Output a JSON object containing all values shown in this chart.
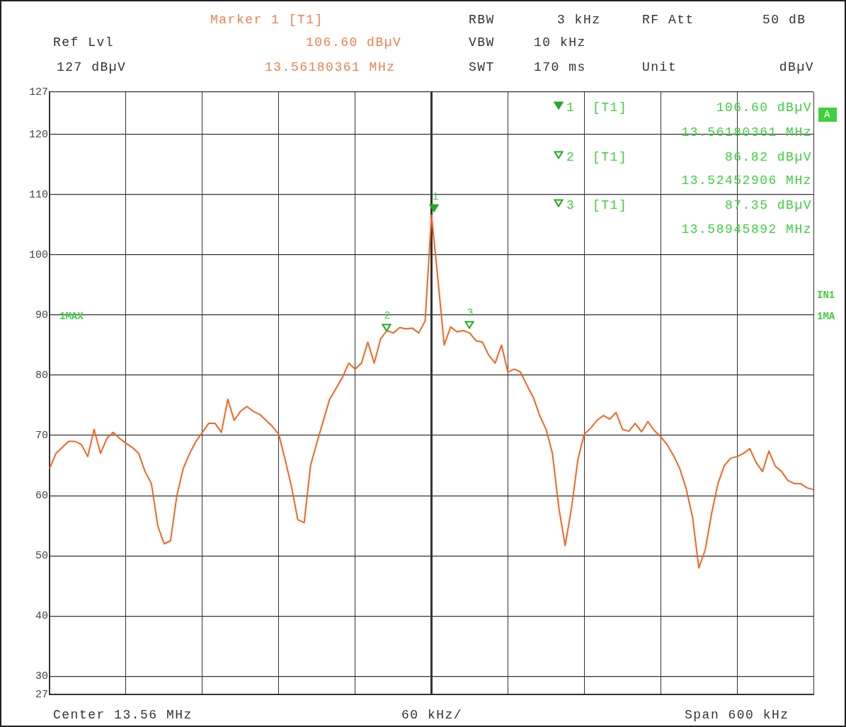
{
  "chart_data": {
    "type": "line",
    "annotations": [
      "Marker 1 [T1]",
      "RBW",
      "3 kHz",
      "RF Att",
      "50 dB",
      "Ref Lvl",
      "106.60 dBµV",
      "VBW",
      "10 kHz",
      "127 dBµV",
      "13.56180361 MHz",
      "SWT",
      "170 ms",
      "Unit",
      "dBµV",
      "1",
      "[T1]",
      "106.60 dBµV",
      "13.56180361 MHz",
      "2",
      "[T1]",
      "86.82 dBµV",
      "13.52452906 MHz",
      "3",
      "[T1]",
      "87.35 dBµV",
      "13.58945892 MHz",
      "1MAX",
      "A",
      "IN1",
      "1MA",
      "Center 13.56 MHz",
      "60 kHz/",
      "Span 600 kHz",
      "1",
      "2",
      "3"
    ],
    "categories": [
      null,
      null,
      null,
      null,
      null,
      null,
      null,
      null,
      null,
      null,
      null,
      null,
      null,
      null,
      null,
      null,
      null,
      null,
      null,
      null,
      null,
      null,
      null,
      null,
      null,
      null,
      null,
      null,
      null,
      null,
      null,
      null,
      null,
      null,
      null,
      null,
      null,
      null,
      null,
      null,
      null,
      null,
      null,
      null,
      null,
      null,
      null,
      null,
      null,
      null,
      null,
      null,
      null,
      null,
      null,
      null,
      null,
      null,
      null,
      null,
      null,
      null,
      null,
      null,
      null,
      null,
      null,
      null,
      null,
      null,
      null,
      null,
      null,
      null,
      null,
      null,
      null,
      null,
      null,
      null,
      null,
      null,
      null,
      null,
      null,
      null,
      null,
      null,
      null,
      null,
      null,
      null,
      null,
      null,
      null,
      null,
      null,
      null,
      null,
      null,
      null,
      null,
      null,
      null,
      null,
      null,
      null,
      null,
      null,
      null,
      null,
      null,
      null,
      null,
      null,
      null,
      null,
      null,
      null,
      null,
      null
    ],
    "ylim": [
      27,
      127
    ],
    "yticks": [
      27,
      30,
      40,
      50,
      60,
      70,
      80,
      90,
      100,
      110,
      120,
      127
    ],
    "tick_labels": "y",
    "grid": true,
    "series": [
      {
        "color": "#f26522",
        "values": [
          64.5,
          67,
          68,
          69,
          69,
          68.5,
          66.5,
          71,
          67,
          69.5,
          70.5,
          69.5,
          68.7,
          68,
          67,
          64,
          62,
          55,
          52,
          52.5,
          60,
          64.5,
          67,
          69,
          70.5,
          72,
          72,
          70.5,
          76,
          72.5,
          74,
          74.8,
          74,
          73.5,
          72.5,
          71.5,
          70.2,
          66,
          61.5,
          56,
          55.5,
          65,
          68.8,
          72.4,
          76,
          77.8,
          79.6,
          82,
          81,
          82,
          85.5,
          82,
          86,
          87.4,
          87,
          87.9,
          87.7,
          87.8,
          87,
          89,
          106.6,
          96,
          85,
          88,
          87.2,
          87.4,
          87,
          85.7,
          85.5,
          83.3,
          82,
          85,
          80.5,
          81,
          80.5,
          78.3,
          76.3,
          73.3,
          71,
          67,
          58,
          51.7,
          58,
          66,
          70.2,
          71.2,
          72.5,
          73.3,
          72.7,
          73.8,
          71,
          70.7,
          72,
          70.6,
          72.3,
          70.8,
          69.8,
          68.5,
          66.7,
          64.5,
          61.2,
          56.5,
          48,
          51,
          57,
          62,
          65,
          66.2,
          66.5,
          67,
          67.8,
          65.5,
          64,
          67.4,
          64.9,
          64,
          62.5,
          62,
          62,
          61.3,
          61
        ]
      }
    ]
  }
}
